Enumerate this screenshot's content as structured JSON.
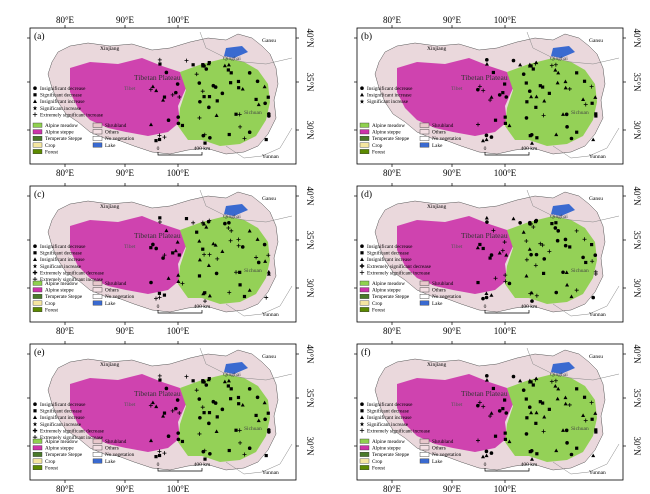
{
  "figure": {
    "lon_labels": [
      "80°E",
      "90°E",
      "100°E"
    ],
    "lat_labels": [
      "40°N",
      "35°N",
      "30°N"
    ],
    "place_names": {
      "xinjiang": "Xinjiang",
      "gansu": "Gansu",
      "qinghai": "Qinghai",
      "plateau": "Tibetan Plateau",
      "tibet": "Tibet",
      "sichuan": "Sichuan",
      "yunnan": "Yunnan"
    },
    "scalebar": {
      "start": "0",
      "end": "400 km"
    },
    "landcover_legend": [
      {
        "label": "Alpine meadow",
        "color": "#8fd14f"
      },
      {
        "label": "Alpine steppe",
        "color": "#cc33aa"
      },
      {
        "label": "Temperate Steppe",
        "color": "#4a7a2a"
      },
      {
        "label": "Crop",
        "color": "#f5e6a0"
      },
      {
        "label": "Forest",
        "color": "#5c8a00"
      },
      {
        "label": "Shrubland",
        "color": "#e8c8cc"
      },
      {
        "label": "Others",
        "color": "#f4e0e4"
      },
      {
        "label": "No vegetation",
        "color": "#ffffff"
      },
      {
        "label": "Lake",
        "color": "#3a6ad0"
      }
    ],
    "trend_colors": {
      "alpine_meadow": "#8fd14f",
      "alpine_steppe": "#cc33aa",
      "desert": "#ead8dc",
      "lake": "#3a6ad0",
      "stations": "#000000"
    },
    "panels": [
      {
        "id": "a",
        "tag": "(a)",
        "trend_legend": [
          "Insignificant decrease",
          "Significant decrease",
          "Insignificant increase",
          "Significant increase",
          "",
          "Extremely significant increase"
        ]
      },
      {
        "id": "b",
        "tag": "(b)",
        "trend_legend": [
          "Insignificant decrease",
          "",
          "Insignificant increase",
          "Significant increase"
        ]
      },
      {
        "id": "c",
        "tag": "(c)",
        "trend_legend": [
          "Insignificant decrease",
          "Significant decrease",
          "Insignificant increase",
          "Significant increase",
          "Extremely significant decrease",
          "Extremely significant increase"
        ]
      },
      {
        "id": "d",
        "tag": "(d)",
        "trend_legend": [
          "Insignificant decrease",
          "Significant decrease",
          "Insignificant increase",
          "",
          "Extremely significant decrease",
          "Extremely significant increase"
        ]
      },
      {
        "id": "e",
        "tag": "(e)",
        "trend_legend": [
          "Insignificant decrease",
          "Significant decrease",
          "Insignificant increase",
          "Significant increase",
          "Extremely significant decrease",
          "Extremely significant increase"
        ]
      },
      {
        "id": "f",
        "tag": "(f)",
        "trend_legend": [
          "Insignificant decrease",
          "Significant decrease",
          "Insignificant increase",
          "Significant increase",
          "",
          "Extremely significant increase"
        ]
      }
    ]
  }
}
